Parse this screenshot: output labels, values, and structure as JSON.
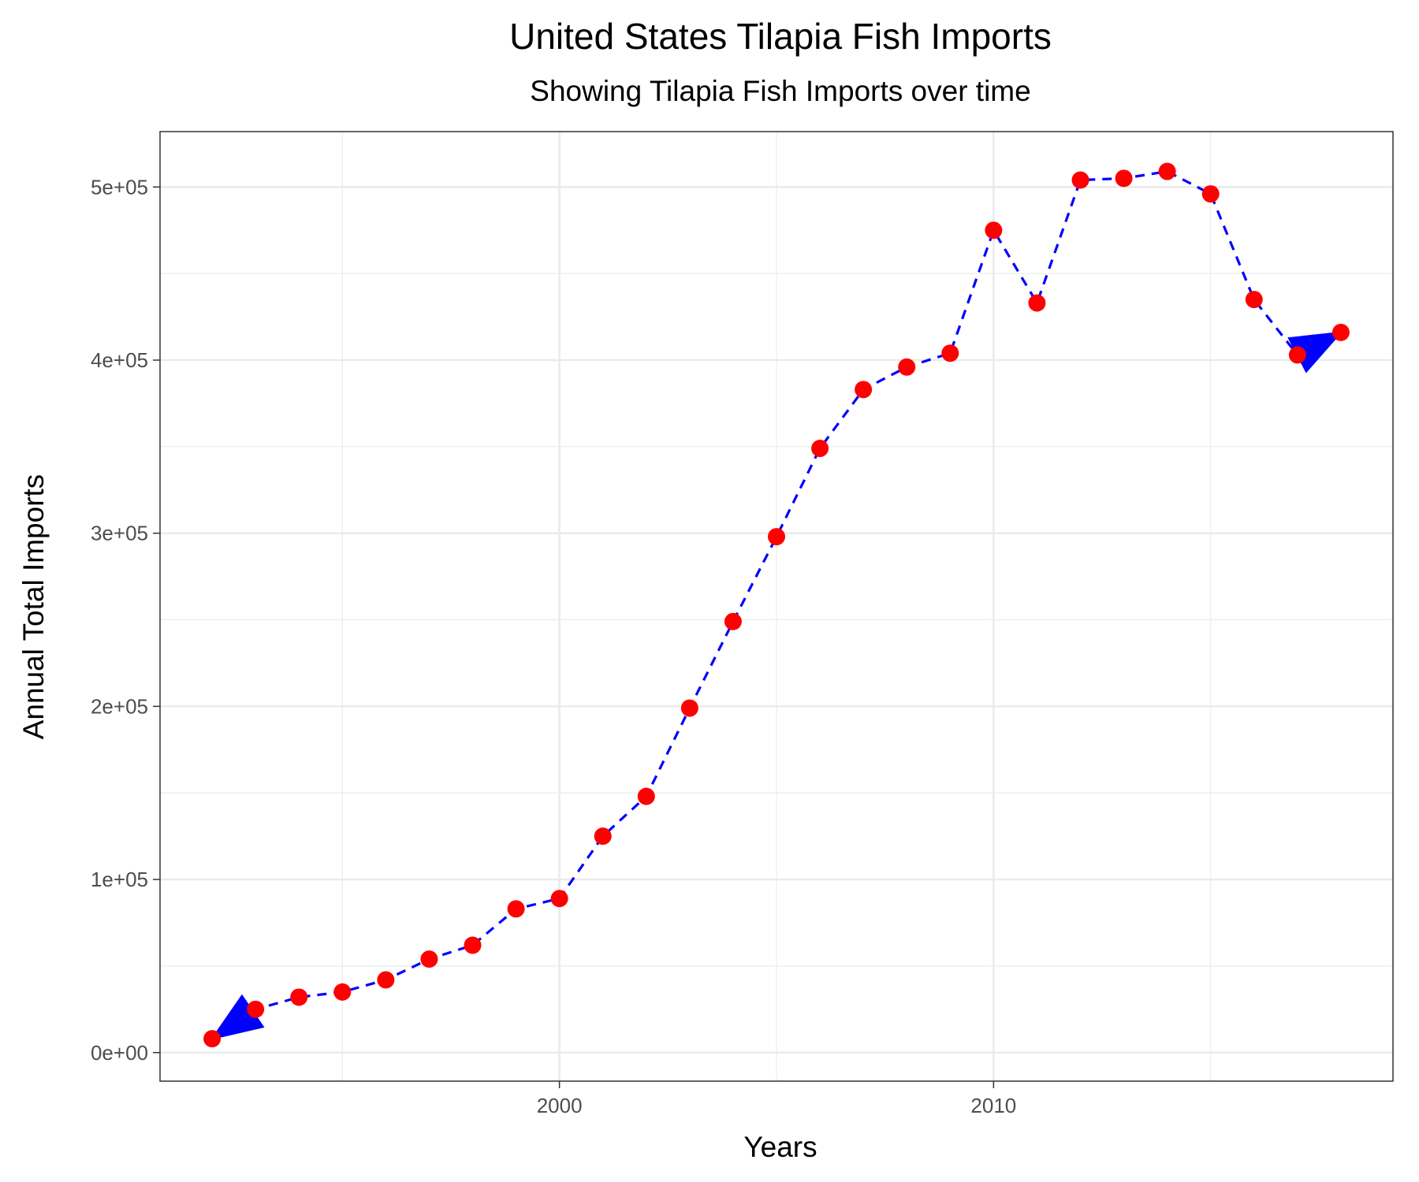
{
  "chart_data": {
    "type": "line",
    "title": "United States Tilapia Fish Imports",
    "subtitle": "Showing Tilapia Fish Imports over time",
    "xlabel": "Years",
    "ylabel": "Annual Total Imports",
    "xlim": [
      1990.8,
      2019.2
    ],
    "ylim": [
      -16500,
      532000
    ],
    "x_major_ticks": [
      2000,
      2010
    ],
    "x_minor_ticks": [
      1995,
      2005,
      2015
    ],
    "x_tick_labels": [
      "2000",
      "2010"
    ],
    "y_major_ticks": [
      0,
      100000,
      200000,
      300000,
      400000,
      500000
    ],
    "y_minor_ticks": [
      50000,
      150000,
      250000,
      350000,
      450000
    ],
    "y_tick_labels": [
      "0e+00",
      "1e+05",
      "2e+05",
      "3e+05",
      "4e+05",
      "5e+05"
    ],
    "grid": true,
    "line_style": "dashed",
    "line_color": "#0000ff",
    "point_color": "#ff0000",
    "arrow_color": "#0000ff",
    "arrows": "start and end of line",
    "series": [
      {
        "x": [
          1992,
          1993,
          1994,
          1995,
          1996,
          1997,
          1998,
          1999,
          2000,
          2001,
          2002,
          2003,
          2004,
          2005,
          2006,
          2007,
          2008,
          2009,
          2010,
          2011,
          2012,
          2013,
          2014,
          2015,
          2016,
          2017,
          2018
        ],
        "values": [
          8000,
          25000,
          32000,
          35000,
          42000,
          54000,
          62000,
          83000,
          89000,
          125000,
          148000,
          199000,
          249000,
          298000,
          349000,
          383000,
          396000,
          404000,
          475000,
          433000,
          504000,
          505000,
          509000,
          496000,
          435000,
          403000,
          416000
        ]
      }
    ]
  }
}
